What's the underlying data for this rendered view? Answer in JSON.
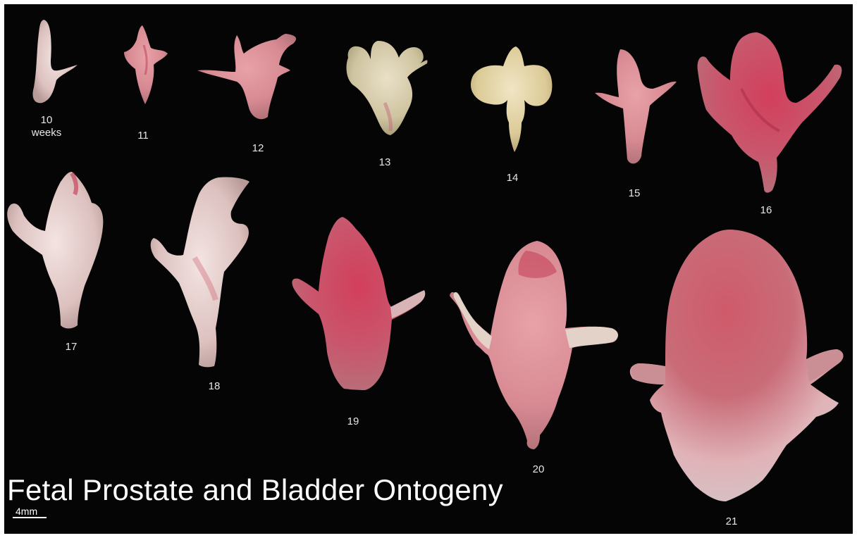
{
  "title": "Fetal Prostate and Bladder Ontogeny",
  "scale_bar": {
    "label": "4mm"
  },
  "specimens": [
    {
      "week": "10",
      "unit": "weeks"
    },
    {
      "week": "11"
    },
    {
      "week": "12"
    },
    {
      "week": "13"
    },
    {
      "week": "14"
    },
    {
      "week": "15"
    },
    {
      "week": "16"
    },
    {
      "week": "17"
    },
    {
      "week": "18"
    },
    {
      "week": "19"
    },
    {
      "week": "20"
    },
    {
      "week": "21"
    }
  ],
  "colors": {
    "background": "#050505",
    "tissue_pale": "#e8d6d2",
    "tissue_pink": "#d97c87",
    "tissue_red": "#c23a53",
    "tissue_yellow": "#e6d8a6"
  }
}
